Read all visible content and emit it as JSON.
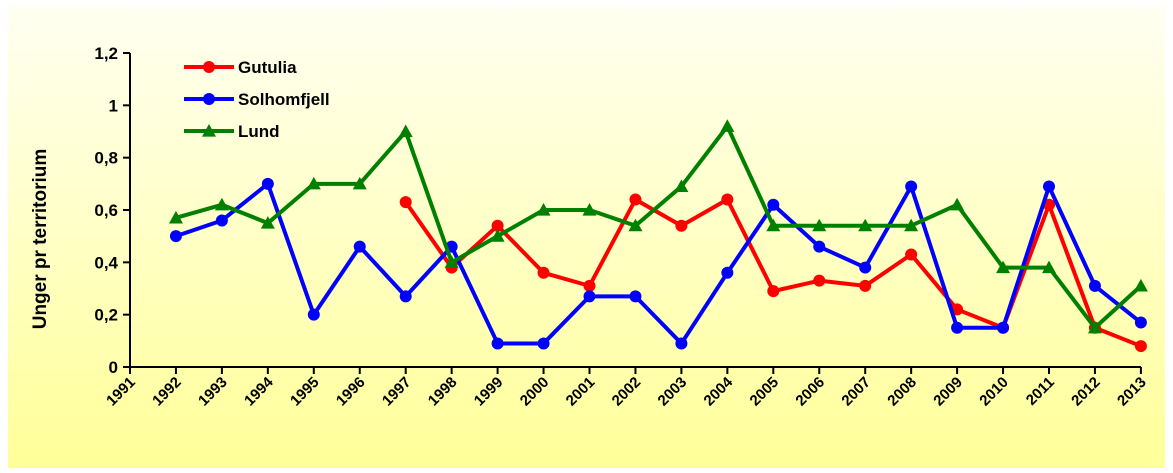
{
  "chart_data": {
    "type": "line",
    "title": "",
    "xlabel": "",
    "ylabel": "Unger pr territorium",
    "x": [
      "1991",
      "1992",
      "1993",
      "1994",
      "1995",
      "1996",
      "1997",
      "1998",
      "1999",
      "2000",
      "2001",
      "2002",
      "2003",
      "2004",
      "2005",
      "2006",
      "2007",
      "2008",
      "2009",
      "2010",
      "2011",
      "2012",
      "2013"
    ],
    "yticks": [
      "0",
      "0,2",
      "0,4",
      "0,6",
      "0,8",
      "1",
      "1,2"
    ],
    "ylim": [
      0,
      1.2
    ],
    "grid": false,
    "legend_position": "top-left",
    "series": [
      {
        "name": "Gutulia",
        "color": "#ff0000",
        "marker": "circle",
        "values": [
          null,
          null,
          null,
          null,
          null,
          null,
          0.63,
          0.38,
          0.54,
          0.36,
          0.31,
          0.64,
          0.54,
          0.64,
          0.29,
          0.33,
          0.31,
          0.43,
          0.22,
          0.15,
          0.62,
          0.15,
          0.08
        ]
      },
      {
        "name": "Solhomfjell",
        "color": "#0000ff",
        "marker": "circle",
        "values": [
          null,
          0.5,
          0.56,
          0.7,
          0.2,
          0.46,
          0.27,
          0.46,
          0.09,
          0.09,
          0.27,
          0.27,
          0.09,
          0.36,
          0.62,
          0.46,
          0.38,
          0.69,
          0.15,
          0.15,
          0.69,
          0.31,
          0.17
        ]
      },
      {
        "name": "Lund",
        "color": "#008000",
        "marker": "triangle",
        "values": [
          null,
          0.57,
          0.62,
          0.55,
          0.7,
          0.7,
          0.9,
          0.4,
          0.5,
          0.6,
          0.6,
          0.54,
          0.69,
          0.92,
          0.54,
          0.54,
          0.54,
          0.54,
          0.62,
          0.38,
          0.38,
          0.15,
          0.31
        ]
      }
    ]
  }
}
